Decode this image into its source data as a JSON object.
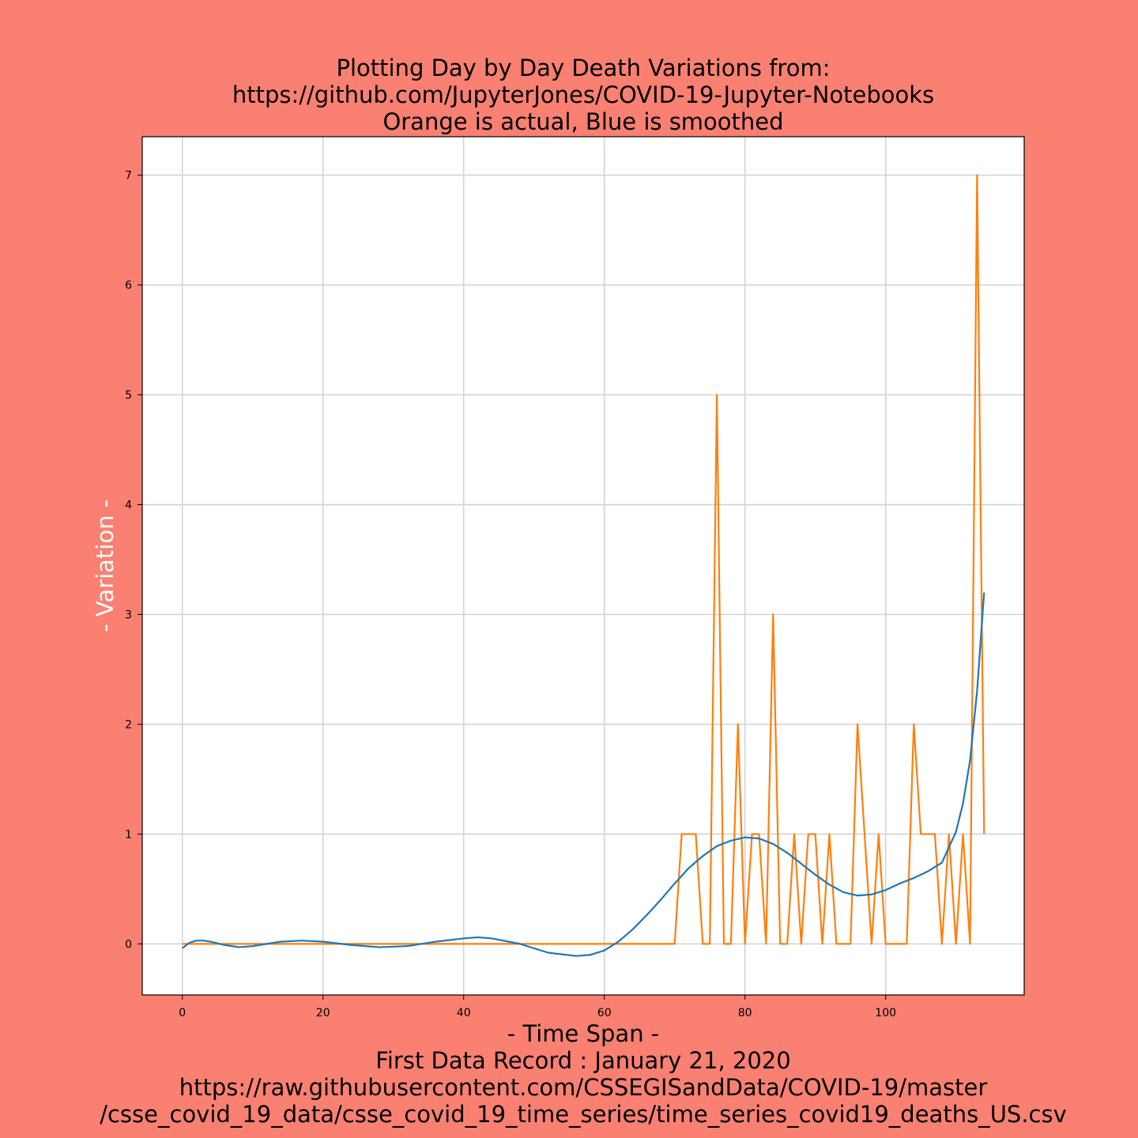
{
  "chart_data": {
    "type": "line",
    "title": [
      "Plotting Day by Day Death Variations from:",
      "https://github.com/JupyterJones/COVID-19-Jupyter-Notebooks",
      "Orange is actual, Blue is smoothed"
    ],
    "xlabel": [
      "- Time Span -",
      "First Data Record : January 21, 2020",
      "https://raw.githubusercontent.com/CSSEGISandData/COVID-19/master",
      "/csse_covid_19_data/csse_covid_19_time_series/time_series_covid19_deaths_US.csv"
    ],
    "ylabel": "- Variation -",
    "xlim": [
      -5.7,
      119.7
    ],
    "ylim": [
      -0.465,
      7.35
    ],
    "xticks": [
      0,
      20,
      40,
      60,
      80,
      100
    ],
    "yticks": [
      0,
      1,
      2,
      3,
      4,
      5,
      6,
      7
    ],
    "grid": true,
    "series": [
      {
        "color": "#ff7f0e",
        "x": [
          0,
          1,
          2,
          3,
          4,
          5,
          6,
          7,
          8,
          9,
          10,
          11,
          12,
          13,
          14,
          15,
          16,
          17,
          18,
          19,
          20,
          21,
          22,
          23,
          24,
          25,
          26,
          27,
          28,
          29,
          30,
          31,
          32,
          33,
          34,
          35,
          36,
          37,
          38,
          39,
          40,
          41,
          42,
          43,
          44,
          45,
          46,
          47,
          48,
          49,
          50,
          51,
          52,
          53,
          54,
          55,
          56,
          57,
          58,
          59,
          60,
          61,
          62,
          63,
          64,
          65,
          66,
          67,
          68,
          69,
          70,
          71,
          72,
          73,
          74,
          75,
          76,
          77,
          78,
          79,
          80,
          81,
          82,
          83,
          84,
          85,
          86,
          87,
          88,
          89,
          90,
          91,
          92,
          93,
          94,
          95,
          96,
          97,
          98,
          99,
          100,
          101,
          102,
          103,
          104,
          105,
          106,
          107,
          108,
          109,
          110,
          111,
          112,
          113,
          114
        ],
        "y": [
          0,
          0,
          0,
          0,
          0,
          0,
          0,
          0,
          0,
          0,
          0,
          0,
          0,
          0,
          0,
          0,
          0,
          0,
          0,
          0,
          0,
          0,
          0,
          0,
          0,
          0,
          0,
          0,
          0,
          0,
          0,
          0,
          0,
          0,
          0,
          0,
          0,
          0,
          0,
          0,
          0,
          0,
          0,
          0,
          0,
          0,
          0,
          0,
          0,
          0,
          0,
          0,
          0,
          0,
          0,
          0,
          0,
          0,
          0,
          0,
          0,
          0,
          0,
          0,
          0,
          0,
          0,
          0,
          0,
          0,
          0,
          1,
          1,
          1,
          0,
          0,
          5,
          0,
          0,
          2,
          0,
          1,
          1,
          0,
          3,
          0,
          0,
          1,
          0,
          1,
          1,
          0,
          1,
          0,
          0,
          0,
          2,
          1,
          0,
          1,
          0,
          0,
          0,
          0,
          2,
          1,
          1,
          1,
          0,
          1,
          0,
          1,
          0,
          7,
          1
        ]
      },
      {
        "color": "#1f77b4",
        "x": [
          0,
          1,
          2,
          3,
          4,
          6,
          8,
          10,
          12,
          14,
          17,
          20,
          24,
          28,
          32,
          36,
          40,
          42,
          44,
          48,
          52,
          56,
          58,
          60,
          62,
          64,
          66,
          68,
          70,
          72,
          74,
          76,
          78,
          80,
          82,
          84,
          86,
          88,
          90,
          92,
          94,
          96,
          98,
          100,
          102,
          104,
          106,
          108,
          110,
          111,
          112,
          113,
          114
        ],
        "y": [
          -0.04,
          0.01,
          0.03,
          0.03,
          0.02,
          -0.01,
          -0.03,
          -0.02,
          0.0,
          0.02,
          0.03,
          0.02,
          -0.01,
          -0.03,
          -0.02,
          0.02,
          0.05,
          0.06,
          0.05,
          0.0,
          -0.08,
          -0.11,
          -0.1,
          -0.06,
          0.02,
          0.13,
          0.26,
          0.4,
          0.55,
          0.69,
          0.8,
          0.89,
          0.94,
          0.97,
          0.96,
          0.91,
          0.83,
          0.73,
          0.63,
          0.54,
          0.47,
          0.44,
          0.45,
          0.49,
          0.55,
          0.6,
          0.66,
          0.74,
          1.02,
          1.28,
          1.67,
          2.3,
          3.2
        ]
      }
    ]
  }
}
